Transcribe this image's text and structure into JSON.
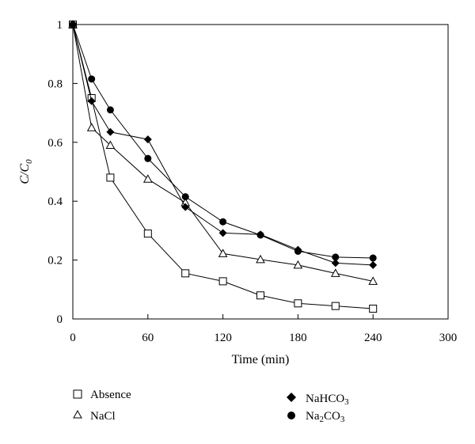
{
  "chart_data": {
    "type": "line",
    "xlabel": "Time (min)",
    "ylabel_main": "C/C",
    "ylabel_sub": "0",
    "xlim": [
      0,
      300
    ],
    "ylim": [
      0,
      1
    ],
    "x_ticks": [
      0,
      60,
      120,
      180,
      240,
      300
    ],
    "x_tick_labels": [
      "0",
      "60",
      "120",
      "180",
      "240",
      "300"
    ],
    "y_ticks": [
      0,
      0.2,
      0.4,
      0.6,
      0.8,
      1
    ],
    "y_tick_labels": [
      "0",
      "0.2",
      "0.4",
      "0.6",
      "0.8",
      "1"
    ],
    "grid": false,
    "legend_position": "bottom",
    "series": [
      {
        "name": "Absence",
        "marker": "square-open",
        "x": [
          0,
          15,
          30,
          60,
          90,
          120,
          150,
          180,
          210,
          240
        ],
        "values": [
          1.0,
          0.75,
          0.48,
          0.29,
          0.155,
          0.128,
          0.08,
          0.053,
          0.044,
          0.035
        ]
      },
      {
        "name": "NaCl",
        "marker": "triangle-open",
        "x": [
          0,
          15,
          30,
          60,
          90,
          120,
          150,
          180,
          210,
          240
        ],
        "values": [
          1.0,
          0.65,
          0.59,
          0.475,
          0.395,
          0.222,
          0.202,
          0.183,
          0.155,
          0.128
        ]
      },
      {
        "name": "NaHCO3",
        "label_main": "NaHCO",
        "label_sub": "3",
        "marker": "diamond-filled",
        "x": [
          0,
          15,
          30,
          60,
          90,
          120,
          150,
          180,
          210,
          240
        ],
        "values": [
          1.0,
          0.74,
          0.635,
          0.61,
          0.38,
          0.292,
          0.287,
          0.235,
          0.19,
          0.183
        ]
      },
      {
        "name": "Na2CO3",
        "label_main": "Na",
        "label_sub": "2",
        "label_tail": "CO",
        "label_sub2": "3",
        "marker": "circle-filled",
        "x": [
          0,
          15,
          30,
          60,
          90,
          120,
          150,
          180,
          210,
          240
        ],
        "values": [
          1.0,
          0.815,
          0.71,
          0.545,
          0.415,
          0.33,
          0.285,
          0.23,
          0.21,
          0.207
        ]
      }
    ]
  }
}
